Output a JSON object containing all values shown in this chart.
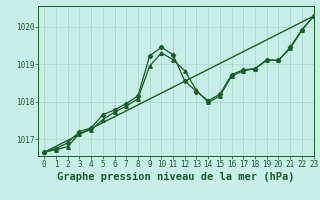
{
  "title": "Graphe pression niveau de la mer (hPa)",
  "background_color": "#c8eee8",
  "grid_color": "#b0d8d0",
  "line_color": "#1a5c2a",
  "xlim": [
    -0.5,
    23
  ],
  "ylim": [
    1016.55,
    1020.55
  ],
  "yticks": [
    1017,
    1018,
    1019,
    1020
  ],
  "xticks": [
    0,
    1,
    2,
    3,
    4,
    5,
    6,
    7,
    8,
    9,
    10,
    11,
    12,
    13,
    14,
    15,
    16,
    17,
    18,
    19,
    20,
    21,
    22,
    23
  ],
  "series1_x": [
    0,
    1,
    2,
    3,
    4,
    5,
    6,
    7,
    8,
    9,
    10,
    11,
    12,
    13,
    14,
    15,
    16,
    17,
    18,
    19,
    20,
    21,
    22,
    23
  ],
  "series1_y": [
    1016.65,
    1016.75,
    1016.9,
    1017.2,
    1017.3,
    1017.65,
    1017.78,
    1017.95,
    1018.15,
    1019.22,
    1019.45,
    1019.25,
    1018.55,
    1018.27,
    1018.02,
    1018.2,
    1018.72,
    1018.85,
    1018.88,
    1019.12,
    1019.1,
    1019.45,
    1019.92,
    1020.28
  ],
  "series2_x": [
    0,
    1,
    2,
    3,
    4,
    5,
    6,
    7,
    8,
    9,
    10,
    11,
    12,
    13,
    14,
    15,
    16,
    17,
    18,
    19,
    20,
    21,
    22,
    23
  ],
  "series2_y": [
    1016.65,
    1016.72,
    1016.8,
    1017.15,
    1017.25,
    1017.52,
    1017.72,
    1017.88,
    1018.08,
    1018.95,
    1019.3,
    1019.12,
    1018.82,
    1018.3,
    1017.98,
    1018.15,
    1018.68,
    1018.82,
    1018.88,
    1019.1,
    1019.1,
    1019.42,
    1019.9,
    1020.28
  ],
  "trend_x": [
    0,
    23
  ],
  "trend_y": [
    1016.65,
    1020.28
  ],
  "title_fontsize": 7.5,
  "tick_fontsize": 5.5
}
